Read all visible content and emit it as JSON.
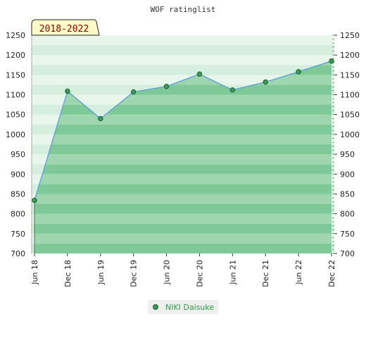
{
  "chart_data": {
    "type": "area",
    "title": "WOF ratinglist",
    "period_badge": "2018-2022",
    "xlabel": "",
    "ylabel": "",
    "ylim": [
      700,
      1250
    ],
    "yticks": [
      700,
      750,
      800,
      850,
      900,
      950,
      1000,
      1050,
      1100,
      1150,
      1200,
      1250
    ],
    "ytick_labels": [
      "700",
      "750",
      "800",
      "850",
      "900",
      "950",
      "1000",
      "1050",
      "1100",
      "1150",
      "1200",
      "1250"
    ],
    "categories": [
      "Jun 18",
      "Dec 18",
      "Jun 19",
      "Dec 19",
      "Jun 20",
      "Dec 20",
      "Jun 21",
      "Dec 21",
      "Jun 22",
      "Dec 22"
    ],
    "series": [
      {
        "name": "NIKI Daisuke",
        "values": [
          834,
          1109,
          1040,
          1107,
          1121,
          1152,
          1112,
          1132,
          1158,
          1185
        ]
      }
    ],
    "grid": true,
    "legend_position": "bottom-center",
    "colors": {
      "area_fill": "#7fc898",
      "area_fill_light": "#9fd6b0",
      "band_light": "#d5eedd",
      "band_lighter": "#e8f6ec",
      "line": "#5aa0d8",
      "marker_fill": "#3c9a56",
      "marker_stroke": "#1f5f30",
      "badge_fill": "#fffbc8",
      "badge_text": "#8b0000",
      "legend_bg": "#efefef",
      "legend_text": "#2e9e48"
    }
  }
}
